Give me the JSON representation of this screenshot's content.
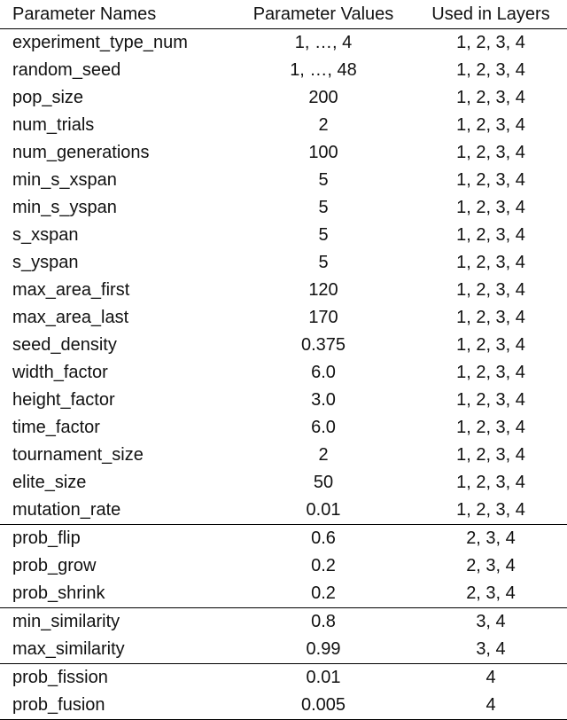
{
  "header": {
    "name": "Parameter Names",
    "value": "Parameter Values",
    "layers": "Used in Layers"
  },
  "rows": [
    {
      "name": "experiment_type_num",
      "value": "1, …, 4",
      "layers": "1, 2, 3, 4"
    },
    {
      "name": "random_seed",
      "value": "1, …, 48",
      "layers": "1, 2, 3, 4"
    },
    {
      "name": "pop_size",
      "value": "200",
      "layers": "1, 2, 3, 4"
    },
    {
      "name": "num_trials",
      "value": "2",
      "layers": "1, 2, 3, 4"
    },
    {
      "name": "num_generations",
      "value": "100",
      "layers": "1, 2, 3, 4"
    },
    {
      "name": "min_s_xspan",
      "value": "5",
      "layers": "1, 2, 3, 4"
    },
    {
      "name": "min_s_yspan",
      "value": "5",
      "layers": "1, 2, 3, 4"
    },
    {
      "name": "s_xspan",
      "value": "5",
      "layers": "1, 2, 3, 4"
    },
    {
      "name": "s_yspan",
      "value": "5",
      "layers": "1, 2, 3, 4"
    },
    {
      "name": "max_area_first",
      "value": "120",
      "layers": "1, 2, 3, 4"
    },
    {
      "name": "max_area_last",
      "value": "170",
      "layers": "1, 2, 3, 4"
    },
    {
      "name": "seed_density",
      "value": "0.375",
      "layers": "1, 2, 3, 4"
    },
    {
      "name": "width_factor",
      "value": "6.0",
      "layers": "1, 2, 3, 4"
    },
    {
      "name": "height_factor",
      "value": "3.0",
      "layers": "1, 2, 3, 4"
    },
    {
      "name": "time_factor",
      "value": "6.0",
      "layers": "1, 2, 3, 4"
    },
    {
      "name": "tournament_size",
      "value": "2",
      "layers": "1, 2, 3, 4"
    },
    {
      "name": "elite_size",
      "value": "50",
      "layers": "1, 2, 3, 4"
    },
    {
      "name": "mutation_rate",
      "value": "0.01",
      "layers": "1, 2, 3, 4"
    },
    {
      "name": "prob_flip",
      "value": "0.6",
      "layers": "2, 3, 4"
    },
    {
      "name": "prob_grow",
      "value": "0.2",
      "layers": "2, 3, 4"
    },
    {
      "name": "prob_shrink",
      "value": "0.2",
      "layers": "2, 3, 4"
    },
    {
      "name": "min_similarity",
      "value": "0.8",
      "layers": "3, 4"
    },
    {
      "name": "max_similarity",
      "value": "0.99",
      "layers": "3, 4"
    },
    {
      "name": "prob_fission",
      "value": "0.01",
      "layers": "4"
    },
    {
      "name": "prob_fusion",
      "value": "0.005",
      "layers": "4"
    }
  ]
}
